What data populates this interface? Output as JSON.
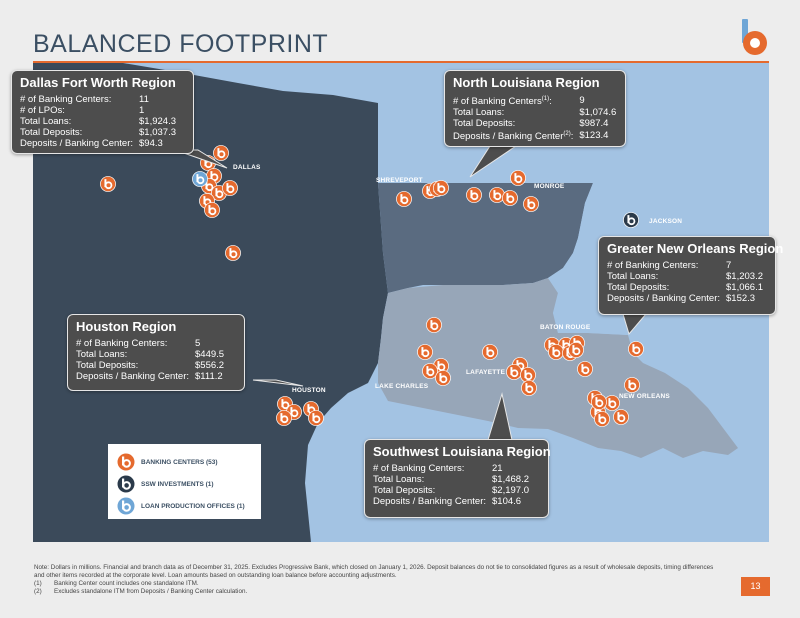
{
  "title": "BALANCED FOOTPRINT",
  "colors": {
    "accent": "#e56a2e",
    "navy": "#3b4f63",
    "banking_center": "#e56a2e",
    "ssw_investments": "#2b3a4a",
    "loan_production_office": "#6fa6d6",
    "water": "#a3c3e3",
    "texas": "#3b4a5a",
    "north_louisiana": "#5a6b80",
    "south_louisiana": "#97a6b8",
    "mississippi": "#a3c3e3"
  },
  "regions": {
    "dfw": {
      "title": "Dallas Fort Worth Region",
      "rows": [
        {
          "label": "# of Banking Centers:",
          "value": "11"
        },
        {
          "label": "# of LPOs:",
          "value": "1"
        },
        {
          "label": "Total Loans:",
          "value": "$1,924.3"
        },
        {
          "label": "Total Deposits:",
          "value": "$1,037.3"
        },
        {
          "label": "Deposits / Banking Center:",
          "value": "$94.3"
        }
      ]
    },
    "north_la": {
      "title": "North Louisiana Region",
      "rows": [
        {
          "label": "# of Banking Centers",
          "sup": "(1)",
          "suffix": ":",
          "value": "9"
        },
        {
          "label": "Total Loans:",
          "value": "$1,074.6"
        },
        {
          "label": "Total Deposits:",
          "value": "$987.4"
        },
        {
          "label": "Deposits / Banking Center",
          "sup": "(2)",
          "suffix": ":",
          "value": "$123.4"
        }
      ]
    },
    "new_orleans": {
      "title": "Greater New Orleans Region",
      "rows": [
        {
          "label": "# of Banking Centers:",
          "value": "7"
        },
        {
          "label": "Total Loans:",
          "value": "$1,203.2"
        },
        {
          "label": "Total Deposits:",
          "value": "$1,066.1"
        },
        {
          "label": "Deposits / Banking Center:",
          "value": "$152.3"
        }
      ]
    },
    "houston": {
      "title": "Houston Region",
      "rows": [
        {
          "label": "# of Banking Centers:",
          "value": "5"
        },
        {
          "label": "Total Loans:",
          "value": "$449.5"
        },
        {
          "label": "Total Deposits:",
          "value": "$556.2"
        },
        {
          "label": "Deposits / Banking Center:",
          "value": "$111.2"
        }
      ]
    },
    "sw_la": {
      "title": "Southwest Louisiana Region",
      "rows": [
        {
          "label": "# of Banking Centers:",
          "value": "21"
        },
        {
          "label": "Total Loans:",
          "value": "$1,468.2"
        },
        {
          "label": "Total Deposits:",
          "value": "$2,197.0"
        },
        {
          "label": "Deposits / Banking Center:",
          "value": "$104.6"
        }
      ]
    }
  },
  "cities": {
    "dallas": "DALLAS",
    "shreveport": "SHREVEPORT",
    "monroe": "MONROE",
    "jackson": "JACKSON",
    "baton_rouge": "BATON ROUGE",
    "lafayette": "LAFAYETTE",
    "lake_charles": "LAKE CHARLES",
    "houston": "HOUSTON",
    "new_orleans": "NEW ORLEANS"
  },
  "legend": {
    "banking_centers": "BANKING CENTERS (53)",
    "ssw_investments": "SSW INVESTMENTS (1)",
    "lpo": "LOAN PRODUCTION OFFICES (1)"
  },
  "icons": {
    "logo": "b-logo-icon",
    "banking_center": "banking-center-pin-icon",
    "ssw": "ssw-investments-pin-icon",
    "lpo": "lpo-pin-icon"
  },
  "footnotes": {
    "note": "Note: Dollars in millions. Financial and branch data as of December 31, 2025. Excludes Progressive Bank, which closed on January 1, 2026. Deposit balances do not tie to consolidated figures as a result of wholesale deposits, timing differences and other items recorded at the corporate level. Loan amounts based on outstanding loan balance before accounting adjustments.",
    "f1_mark": "(1)",
    "f1": "Banking Center count includes one standalone ITM.",
    "f2_mark": "(2)",
    "f2": "Excludes standalone ITM from Deposits / Banking Center calculation."
  },
  "page_number": "13"
}
